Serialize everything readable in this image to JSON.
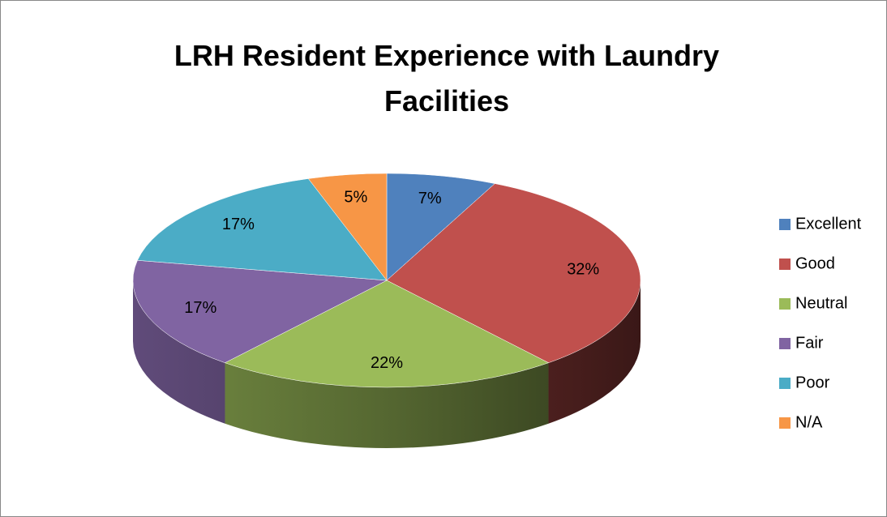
{
  "chart_data": {
    "type": "pie3d",
    "title": "LRH Resident Experience with Laundry Facilities",
    "categories": [
      "Excellent",
      "Good",
      "Neutral",
      "Fair",
      "Poor",
      "N/A"
    ],
    "values": [
      7,
      32,
      22,
      17,
      17,
      5
    ],
    "value_labels": [
      "7%",
      "32%",
      "22%",
      "17%",
      "17%",
      "5%"
    ],
    "colors": [
      "#4F81BD",
      "#C0504D",
      "#9BBB59",
      "#8064A2",
      "#4BACC6",
      "#F79646"
    ],
    "legend": "right"
  }
}
